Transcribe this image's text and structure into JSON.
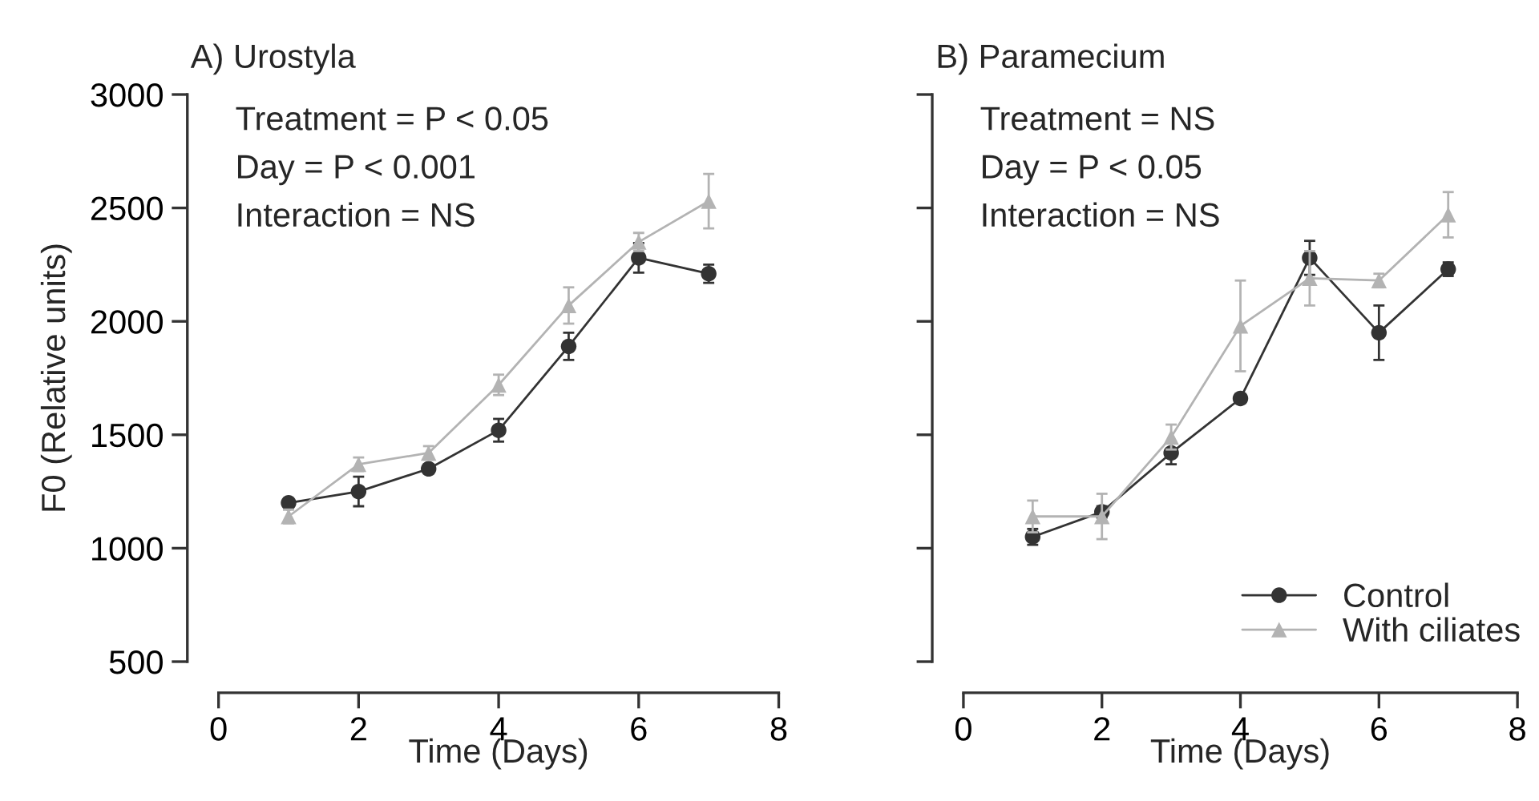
{
  "chart_data": [
    {
      "type": "line",
      "title": "A) Urostyla",
      "xlabel": "Time (Days)",
      "ylabel": "F0 (Relative units)",
      "x": [
        1,
        2,
        3,
        4,
        5,
        6,
        7
      ],
      "xlim": [
        0,
        8
      ],
      "xticks": [
        0,
        2,
        4,
        6,
        8
      ],
      "ylim": [
        500,
        3000
      ],
      "yticks": [
        500,
        1000,
        1500,
        2000,
        2500,
        3000
      ],
      "grid": false,
      "legend": false,
      "line_style": "solid",
      "annotations": [
        "Treatment = P < 0.05",
        "Day = P < 0.001",
        "Interaction = NS"
      ],
      "series": [
        {
          "color": "#333333",
          "marker": "circle",
          "values": [
            1200,
            1250,
            1350,
            1520,
            1890,
            2280,
            2210
          ],
          "errors": [
            20,
            65,
            20,
            50,
            60,
            65,
            40
          ]
        },
        {
          "color": "#b3b3b3",
          "marker": "triangle",
          "values": [
            1140,
            1370,
            1420,
            1720,
            2070,
            2350,
            2530
          ],
          "errors": [
            30,
            30,
            30,
            45,
            80,
            40,
            120
          ]
        }
      ]
    },
    {
      "type": "line",
      "title": "B) Paramecium",
      "xlabel": "Time (Days)",
      "x": [
        1,
        2,
        3,
        4,
        5,
        6,
        7
      ],
      "xlim": [
        0,
        8
      ],
      "xticks": [
        0,
        2,
        4,
        6,
        8
      ],
      "ylim": [
        500,
        3000
      ],
      "yticks": [
        500,
        1000,
        1500,
        2000,
        2500,
        3000
      ],
      "tick_labels": "x",
      "grid": false,
      "legend": "bottom right",
      "line_style": "solid",
      "annotations": [
        "Treatment = NS",
        "Day = P < 0.05",
        "Interaction = NS"
      ],
      "series": [
        {
          "name": "Control",
          "color": "#333333",
          "marker": "circle",
          "values": [
            1050,
            1160,
            1420,
            1660,
            2280,
            1950,
            2230
          ],
          "errors": [
            35,
            25,
            50,
            20,
            75,
            120,
            30
          ]
        },
        {
          "name": "With ciliates",
          "color": "#b3b3b3",
          "marker": "triangle",
          "values": [
            1140,
            1140,
            1490,
            1980,
            2190,
            2180,
            2470
          ],
          "errors": [
            70,
            100,
            55,
            200,
            120,
            30,
            100
          ]
        }
      ]
    }
  ]
}
